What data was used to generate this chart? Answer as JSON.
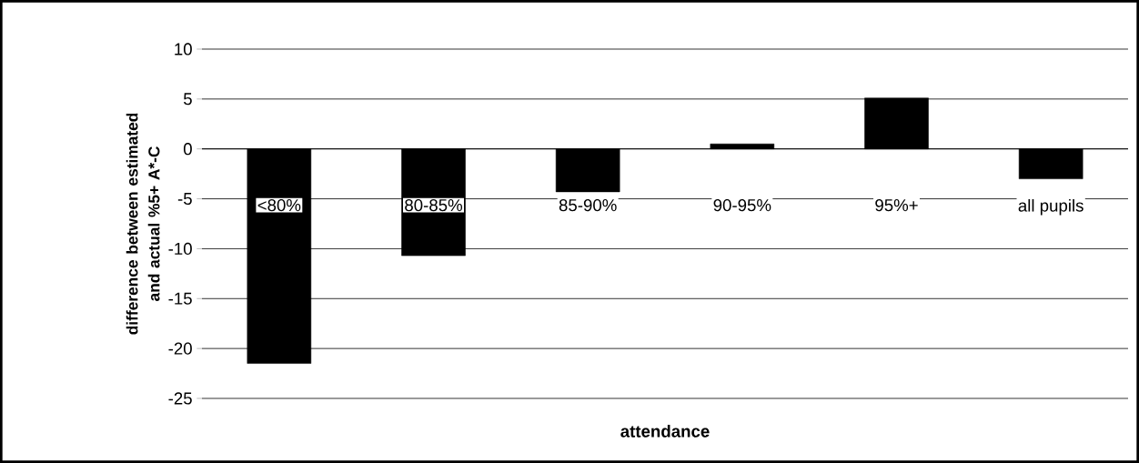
{
  "chart_data": {
    "type": "bar",
    "xlabel": "attendance",
    "ylabel": "difference between estimated and actual %5+ A*-C",
    "categories": [
      "<80%",
      "80-85%",
      "85-90%",
      "90-95%",
      "95%+",
      "all pupils"
    ],
    "values": [
      -21.5,
      -10.7,
      -4.3,
      0.5,
      5.1,
      -3.0
    ],
    "color": "#000000",
    "ylim": [
      -25,
      10
    ],
    "yticks": [
      -25,
      -20,
      -15,
      -10,
      -5,
      0,
      5,
      10
    ],
    "grid": "y"
  }
}
